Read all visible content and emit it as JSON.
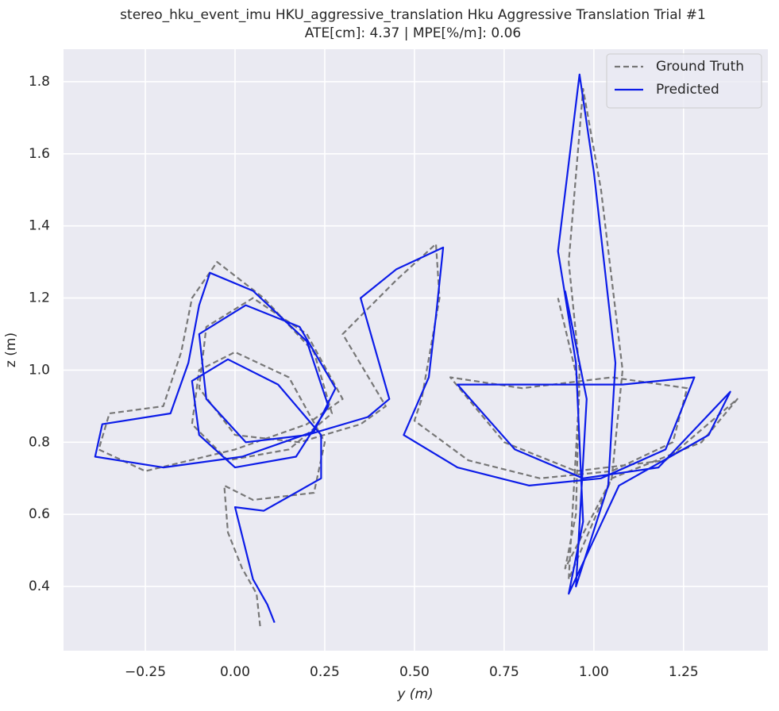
{
  "chart_data": {
    "type": "line",
    "title": "stereo_hku_event_imu HKU_aggressive_translation Hku Aggressive Translation Trial #1",
    "subtitle": "ATE[cm]: 4.37 | MPE[%/m]: 0.06",
    "x_label": "y (m)",
    "y_label": "z (m)",
    "xlim": [
      -0.478,
      1.485
    ],
    "ylim": [
      0.222,
      1.89
    ],
    "xticks": [
      {
        "value": -0.25,
        "label": "−0.25"
      },
      {
        "value": 0,
        "label": "0.00"
      },
      {
        "value": 0.25,
        "label": "0.25"
      },
      {
        "value": 0.5,
        "label": "0.50"
      },
      {
        "value": 0.75,
        "label": "0.75"
      },
      {
        "value": 1,
        "label": "1.00"
      },
      {
        "value": 1.25,
        "label": "1.25"
      }
    ],
    "yticks": [
      0.4,
      0.6,
      0.8,
      {
        "value": 1,
        "label": "1.0"
      },
      1.2,
      1.4,
      1.6,
      1.8
    ],
    "grid": true,
    "legend": "upper right",
    "series": [
      {
        "name": "Ground Truth",
        "color": "#777777",
        "dashed": true,
        "x": [
          0.07,
          0.06,
          0.02,
          -0.02,
          -0.03,
          0.05,
          0.22,
          0.25,
          0.15,
          0.0,
          -0.1,
          -0.12,
          -0.02,
          0.15,
          0.27,
          0.22,
          0.08,
          -0.05,
          -0.12,
          -0.15,
          -0.2,
          -0.35,
          -0.38,
          -0.25,
          0.0,
          0.2,
          0.3,
          0.2,
          0.05,
          -0.08,
          -0.1,
          0.0,
          0.18,
          0.35,
          0.42,
          0.3,
          0.45,
          0.56,
          0.57,
          0.52,
          0.5,
          0.65,
          0.85,
          1.05,
          1.22,
          1.26,
          1.05,
          0.8,
          0.6,
          0.75,
          0.95,
          1.2,
          1.4,
          1.3,
          1.05,
          0.92,
          0.95,
          0.96,
          0.93,
          0.97,
          1.02,
          1.08,
          1.05,
          0.93,
          0.96,
          0.9
        ],
        "values": [
          0.29,
          0.38,
          0.45,
          0.55,
          0.68,
          0.64,
          0.66,
          0.8,
          0.98,
          1.05,
          1.0,
          0.85,
          0.75,
          0.78,
          0.88,
          1.05,
          1.2,
          1.3,
          1.2,
          1.05,
          0.9,
          0.88,
          0.78,
          0.72,
          0.78,
          0.85,
          0.92,
          1.1,
          1.2,
          1.12,
          0.95,
          0.82,
          0.8,
          0.85,
          0.9,
          1.1,
          1.25,
          1.35,
          1.2,
          0.92,
          0.86,
          0.75,
          0.7,
          0.72,
          0.8,
          0.95,
          0.98,
          0.95,
          0.98,
          0.8,
          0.72,
          0.75,
          0.92,
          0.8,
          0.7,
          0.45,
          0.6,
          1.0,
          1.3,
          1.78,
          1.5,
          1.0,
          0.7,
          0.42,
          0.95,
          1.2
        ]
      },
      {
        "name": "Predicted",
        "color": "#0c1ce8",
        "dashed": false,
        "x": [
          0.11,
          0.09,
          0.05,
          0.04,
          0.0,
          0.08,
          0.24,
          0.24,
          0.12,
          -0.02,
          -0.12,
          -0.1,
          0.0,
          0.17,
          0.26,
          0.2,
          0.05,
          -0.07,
          -0.1,
          -0.13,
          -0.18,
          -0.37,
          -0.39,
          -0.2,
          0.02,
          0.22,
          0.28,
          0.18,
          0.03,
          -0.1,
          -0.08,
          0.03,
          0.2,
          0.37,
          0.43,
          0.35,
          0.45,
          0.58,
          0.56,
          0.54,
          0.47,
          0.62,
          0.82,
          1.02,
          1.2,
          1.28,
          1.08,
          0.78,
          0.62,
          0.78,
          0.97,
          1.18,
          1.38,
          1.32,
          1.07,
          0.93,
          0.97,
          0.95,
          0.9,
          0.96,
          1.0,
          1.06,
          1.04,
          0.95,
          0.98,
          0.92
        ],
        "values": [
          0.3,
          0.35,
          0.42,
          0.46,
          0.62,
          0.61,
          0.7,
          0.82,
          0.96,
          1.03,
          0.97,
          0.82,
          0.73,
          0.76,
          0.9,
          1.08,
          1.22,
          1.27,
          1.18,
          1.02,
          0.88,
          0.85,
          0.76,
          0.73,
          0.76,
          0.83,
          0.95,
          1.12,
          1.18,
          1.1,
          0.92,
          0.8,
          0.82,
          0.87,
          0.92,
          1.2,
          1.28,
          1.34,
          1.15,
          0.98,
          0.82,
          0.73,
          0.68,
          0.7,
          0.78,
          0.98,
          0.96,
          0.96,
          0.96,
          0.78,
          0.7,
          0.73,
          0.94,
          0.82,
          0.68,
          0.38,
          0.58,
          1.02,
          1.33,
          1.82,
          1.55,
          1.02,
          0.68,
          0.4,
          0.92,
          1.22
        ]
      }
    ]
  }
}
